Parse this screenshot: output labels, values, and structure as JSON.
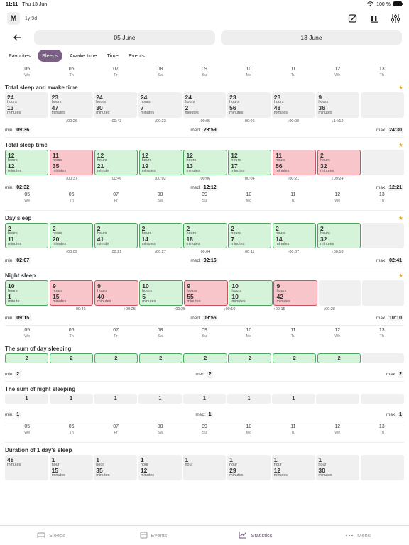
{
  "status": {
    "time": "11:11",
    "date": "Thu 13 Jun",
    "battery": "100 %"
  },
  "app": {
    "avatar": "M",
    "age": "1y 9d"
  },
  "dates": {
    "from": "05 June",
    "to": "13 June"
  },
  "tabs": [
    "Favorites",
    "Sleeps",
    "Awake time",
    "Time",
    "Events"
  ],
  "days": [
    {
      "n": "05",
      "w": "We"
    },
    {
      "n": "06",
      "w": "Th"
    },
    {
      "n": "07",
      "w": "Fr"
    },
    {
      "n": "08",
      "w": "Sa"
    },
    {
      "n": "09",
      "w": "Su"
    },
    {
      "n": "10",
      "w": "Mo"
    },
    {
      "n": "11",
      "w": "Tu"
    },
    {
      "n": "12",
      "w": "We"
    },
    {
      "n": "13",
      "w": "Th"
    }
  ],
  "sections": [
    {
      "title": "Total sleep and awake time",
      "star": true,
      "cells": [
        [
          "24",
          "hours",
          "13",
          "minutes"
        ],
        [
          "23",
          "hours",
          "47",
          "minutes"
        ],
        [
          "24",
          "hours",
          "30",
          "minutes"
        ],
        [
          "24",
          "hours",
          "7",
          "minutes"
        ],
        [
          "24",
          "hours",
          "2",
          "minutes"
        ],
        [
          "23",
          "hours",
          "56",
          "minutes"
        ],
        [
          "23",
          "hours",
          "48",
          "minutes"
        ],
        [
          "9",
          "hours",
          "36",
          "minutes"
        ]
      ],
      "colors": [
        "g",
        "g",
        "g",
        "g",
        "g",
        "g",
        "g",
        "g"
      ],
      "diffs": [
        "↓00:26",
        "↑00:43",
        "↓00:23",
        "↓00:05",
        "↓00:06",
        "↓00:08",
        "↓14:12",
        ""
      ],
      "min": "09:36",
      "med": "23:59",
      "max": "24:30"
    },
    {
      "title": "Total sleep time",
      "star": true,
      "cells": [
        [
          "12",
          "hours",
          "12",
          "minutes"
        ],
        [
          "11",
          "hours",
          "35",
          "minutes"
        ],
        [
          "12",
          "hours",
          "21",
          "minute"
        ],
        [
          "12",
          "hours",
          "19",
          "minutes"
        ],
        [
          "12",
          "hours",
          "13",
          "minutes"
        ],
        [
          "12",
          "hours",
          "17",
          "minutes"
        ],
        [
          "11",
          "hours",
          "56",
          "minutes"
        ],
        [
          "2",
          "hours",
          "32",
          "minutes"
        ]
      ],
      "colors": [
        "green",
        "red",
        "green",
        "green",
        "green",
        "green",
        "red",
        "red"
      ],
      "diffs": [
        "↓00:37",
        "↑00:46",
        "↓00:02",
        "↓00:06",
        "↑00:04",
        "↓00:21",
        "↓09:24",
        ""
      ],
      "min": "02:32",
      "med": "12:12",
      "max": "12:21"
    },
    {
      "title": "Day sleep",
      "star": true,
      "cells": [
        [
          "2",
          "hours",
          "11",
          "minutes"
        ],
        [
          "2",
          "hours",
          "20",
          "minutes"
        ],
        [
          "2",
          "hours",
          "41",
          "minute"
        ],
        [
          "2",
          "hours",
          "14",
          "minutes"
        ],
        [
          "2",
          "hours",
          "18",
          "minutes"
        ],
        [
          "2",
          "hours",
          "7",
          "minutes"
        ],
        [
          "2",
          "hours",
          "14",
          "minutes"
        ],
        [
          "2",
          "hours",
          "32",
          "minutes"
        ]
      ],
      "colors": [
        "green",
        "green",
        "green",
        "green",
        "green",
        "green",
        "green",
        "green"
      ],
      "diffs": [
        "↑00:09",
        "↑00:21",
        "↓00:27",
        "↑00:04",
        "↓00:11",
        "↑00:07",
        "↑00:18",
        ""
      ],
      "min": "02:07",
      "med": "02:16",
      "max": "02:41"
    },
    {
      "title": "Night sleep",
      "star": true,
      "cells": [
        [
          "10",
          "hours",
          "1",
          "minute"
        ],
        [
          "9",
          "hours",
          "15",
          "minutes"
        ],
        [
          "9",
          "hours",
          "40",
          "minutes"
        ],
        [
          "10",
          "hours",
          "5",
          "minutes"
        ],
        [
          "9",
          "hours",
          "55",
          "minutes"
        ],
        [
          "10",
          "hours",
          "10",
          "minutes"
        ],
        [
          "9",
          "hours",
          "42",
          "minutes"
        ]
      ],
      "colors": [
        "green",
        "red",
        "red",
        "green",
        "red",
        "green",
        "red"
      ],
      "diffs": [
        "↓00:46",
        "↑00:25",
        "↑00:25",
        "↓00:10",
        "↑00:15",
        "↓00:28",
        ""
      ],
      "min": "09:15",
      "med": "09:55",
      "max": "10:10"
    },
    {
      "title": "The sum of day sleeping",
      "cells": [
        "2",
        "2",
        "2",
        "2",
        "2",
        "2",
        "2",
        "2"
      ],
      "min": "2",
      "med": "2",
      "max": "2"
    },
    {
      "title": "The sum of night sleeping",
      "cells": [
        "1",
        "1",
        "1",
        "1",
        "1",
        "1",
        "1"
      ],
      "min": "1",
      "med": "1",
      "max": "1"
    },
    {
      "title": "Duration of 1 day's sleep",
      "cells": [
        [
          "48",
          "minutes",
          "",
          ""
        ],
        [
          "1",
          "hour",
          "15",
          "minutes"
        ],
        [
          "1",
          "hour",
          "35",
          "minutes"
        ],
        [
          "1",
          "hour",
          "12",
          "minutes"
        ],
        [
          "1",
          "hour",
          "",
          ""
        ],
        [
          "1",
          "hour",
          "29",
          "minutes"
        ],
        [
          "1",
          "hour",
          "12",
          "minutes"
        ],
        [
          "1",
          "hour",
          "30",
          "minutes"
        ]
      ]
    }
  ],
  "labels": {
    "min": "min:",
    "med": "med:",
    "max": "max:"
  },
  "nav": [
    "Sleeps",
    "Events",
    "Statistics",
    "Menu"
  ]
}
